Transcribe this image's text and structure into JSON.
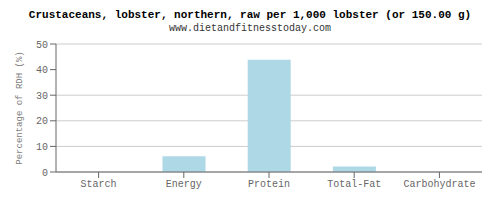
{
  "chart_data": {
    "type": "bar",
    "title": "Crustaceans, lobster, northern, raw per 1,000 lobster (or 150.00 g)",
    "subtitle": "www.dietandfitnesstoday.com",
    "categories": [
      "Starch",
      "Energy",
      "Protein",
      "Total-Fat",
      "Carbohydrate"
    ],
    "values": [
      0,
      6.2,
      43.8,
      2.1,
      0
    ],
    "color": "#aed8e6",
    "ylabel": "Percentage of RDH (%)",
    "ylim": [
      0,
      50
    ],
    "yticks": [
      0,
      10,
      20,
      30,
      40,
      50
    ],
    "grid": true
  }
}
